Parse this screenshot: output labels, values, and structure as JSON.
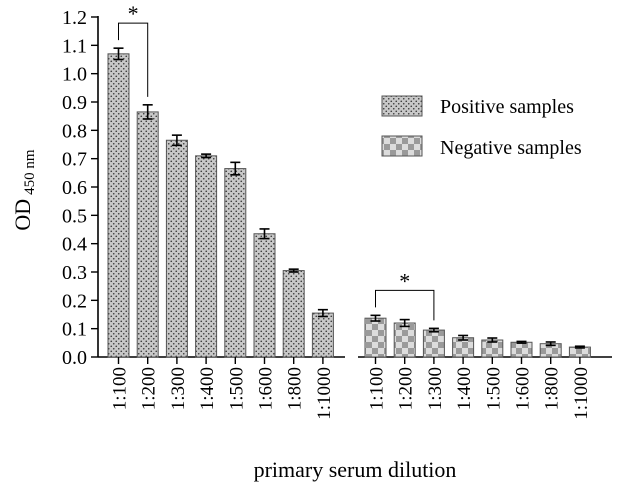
{
  "chart_data": {
    "type": "bar",
    "title": "",
    "xlabel": "primary serum dilution",
    "ylabel": "OD",
    "ylabel_subscript": "450 nm",
    "ylim": [
      0.0,
      1.2
    ],
    "yticks": [
      "0.0",
      "0.1",
      "0.2",
      "0.3",
      "0.4",
      "0.5",
      "0.6",
      "0.7",
      "0.8",
      "0.9",
      "1.0",
      "1.1",
      "1.2"
    ],
    "grid": false,
    "legend_position": "right",
    "series": [
      {
        "name": "Positive samples",
        "pattern": "dots",
        "categories": [
          "1:100",
          "1:200",
          "1:300",
          "1:400",
          "1:500",
          "1:600",
          "1:800",
          "1:1000"
        ],
        "values": [
          1.07,
          0.865,
          0.765,
          0.71,
          0.665,
          0.435,
          0.305,
          0.155
        ],
        "errors": [
          0.02,
          0.025,
          0.018,
          0.006,
          0.022,
          0.017,
          0.005,
          0.012
        ]
      },
      {
        "name": "Negative samples",
        "pattern": "checker",
        "categories": [
          "1:100",
          "1:200",
          "1:300",
          "1:400",
          "1:500",
          "1:600",
          "1:800",
          "1:1000"
        ],
        "values": [
          0.137,
          0.12,
          0.095,
          0.068,
          0.06,
          0.052,
          0.047,
          0.035
        ],
        "errors": [
          0.01,
          0.012,
          0.006,
          0.008,
          0.007,
          0.003,
          0.006,
          0.003
        ]
      }
    ],
    "annotations": [
      {
        "text": "*",
        "series": 0,
        "from": 0,
        "to": 1
      },
      {
        "text": "*",
        "series": 1,
        "from": 0,
        "to": 2
      }
    ],
    "colors": {
      "bar_fill": "#c8c8c8",
      "dot": "#333333",
      "checker_light": "#dcdcdc",
      "checker_dark": "#9a9a9a",
      "axis": "#000000"
    }
  }
}
